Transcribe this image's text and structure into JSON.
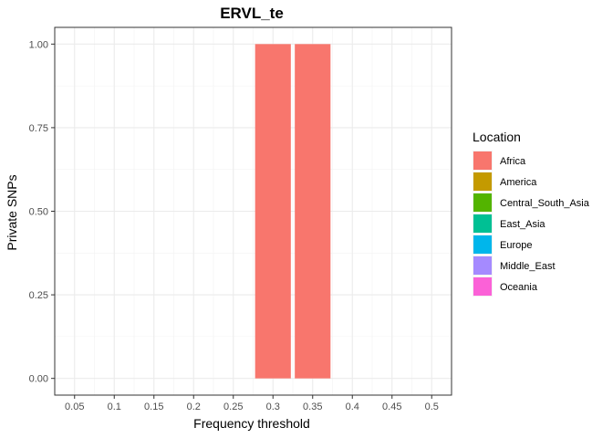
{
  "chart_data": {
    "type": "bar",
    "title": "ERVL_te",
    "xlabel": "Frequency threshold",
    "ylabel": "Private SNPs",
    "x_ticks": [
      "0.05",
      "0.1",
      "0.15",
      "0.2",
      "0.25",
      "0.3",
      "0.35",
      "0.4",
      "0.45",
      "0.5"
    ],
    "x_range": [
      0.025,
      0.525
    ],
    "ylim": [
      -0.05,
      1.05
    ],
    "y_ticks": [
      "0.00",
      "0.25",
      "0.50",
      "0.75",
      "1.00"
    ],
    "grid": true,
    "legend": {
      "title": "Location",
      "position": "right",
      "entries": [
        {
          "name": "Africa",
          "color": "#F8766D"
        },
        {
          "name": "America",
          "color": "#C49A00"
        },
        {
          "name": "Central_South_Asia",
          "color": "#53B400"
        },
        {
          "name": "East_Asia",
          "color": "#00C094"
        },
        {
          "name": "Europe",
          "color": "#00B6EB"
        },
        {
          "name": "Middle_East",
          "color": "#A58AFF"
        },
        {
          "name": "Oceania",
          "color": "#FB61D7"
        }
      ]
    },
    "series": [
      {
        "name": "Africa",
        "color": "#F8766D",
        "points": [
          {
            "x": 0.3,
            "y": 1.0
          },
          {
            "x": 0.35,
            "y": 1.0
          }
        ]
      }
    ],
    "bar_width": 0.045
  }
}
